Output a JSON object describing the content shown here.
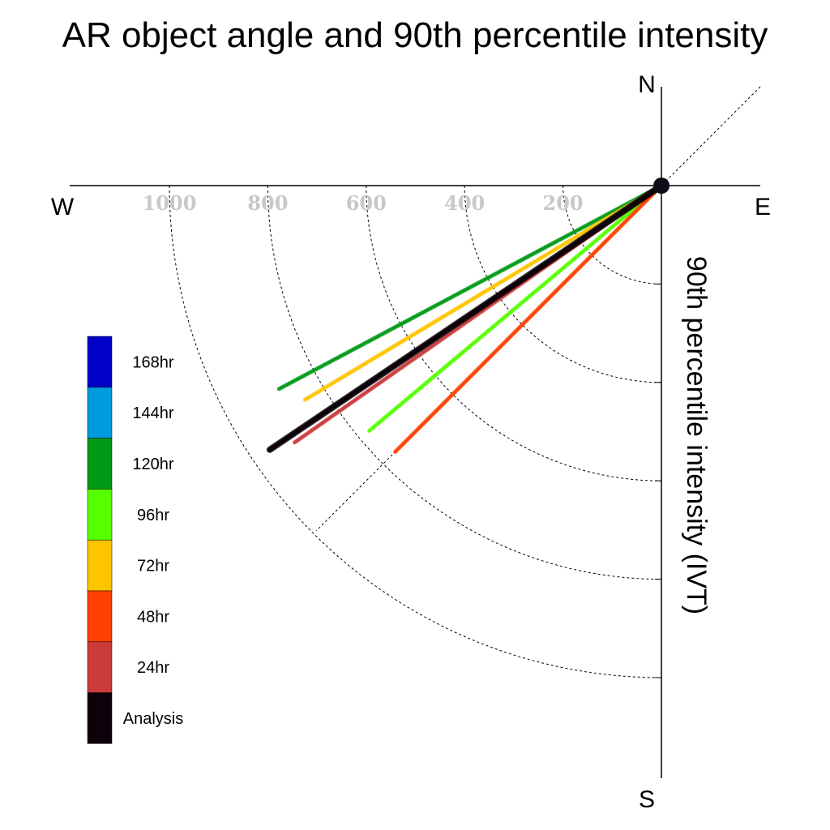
{
  "chart_data": {
    "type": "polar-line",
    "title": "AR object angle and 90th percentile intensity",
    "rlabel": "90th percentile intensity (IVT)",
    "compass": {
      "north": "N",
      "south": "S",
      "west": "W",
      "east": "E"
    },
    "r_ticks": [
      200,
      400,
      600,
      800,
      1000
    ],
    "r_tick_labels": [
      "200",
      "400",
      "600",
      "800",
      "1000"
    ],
    "r_max": 1200,
    "angle_unit": "degrees clockwise from west",
    "series": [
      {
        "name": "168hr",
        "color": "#0000c8",
        "angle": null,
        "intensity": null
      },
      {
        "name": "144hr",
        "color": "#009ade",
        "angle": null,
        "intensity": null
      },
      {
        "name": "120hr",
        "color": "#009a17",
        "angle": 28,
        "intensity": 880
      },
      {
        "name": "96hr",
        "color": "#55ff00",
        "angle": 40,
        "intensity": 775
      },
      {
        "name": "72hr",
        "color": "#ffc400",
        "angle": 31,
        "intensity": 845
      },
      {
        "name": "48hr",
        "color": "#ff4000",
        "angle": 45,
        "intensity": 765
      },
      {
        "name": "24hr",
        "color": "#cc3b3b",
        "angle": 35,
        "intensity": 910
      },
      {
        "name": "Analysis",
        "color": "#0d0209",
        "angle": 34,
        "intensity": 960
      }
    ],
    "legend": [
      "168hr",
      "144hr",
      "120hr",
      "96hr",
      "72hr",
      "48hr",
      "24hr",
      "Analysis"
    ],
    "legend_placement": "left"
  }
}
